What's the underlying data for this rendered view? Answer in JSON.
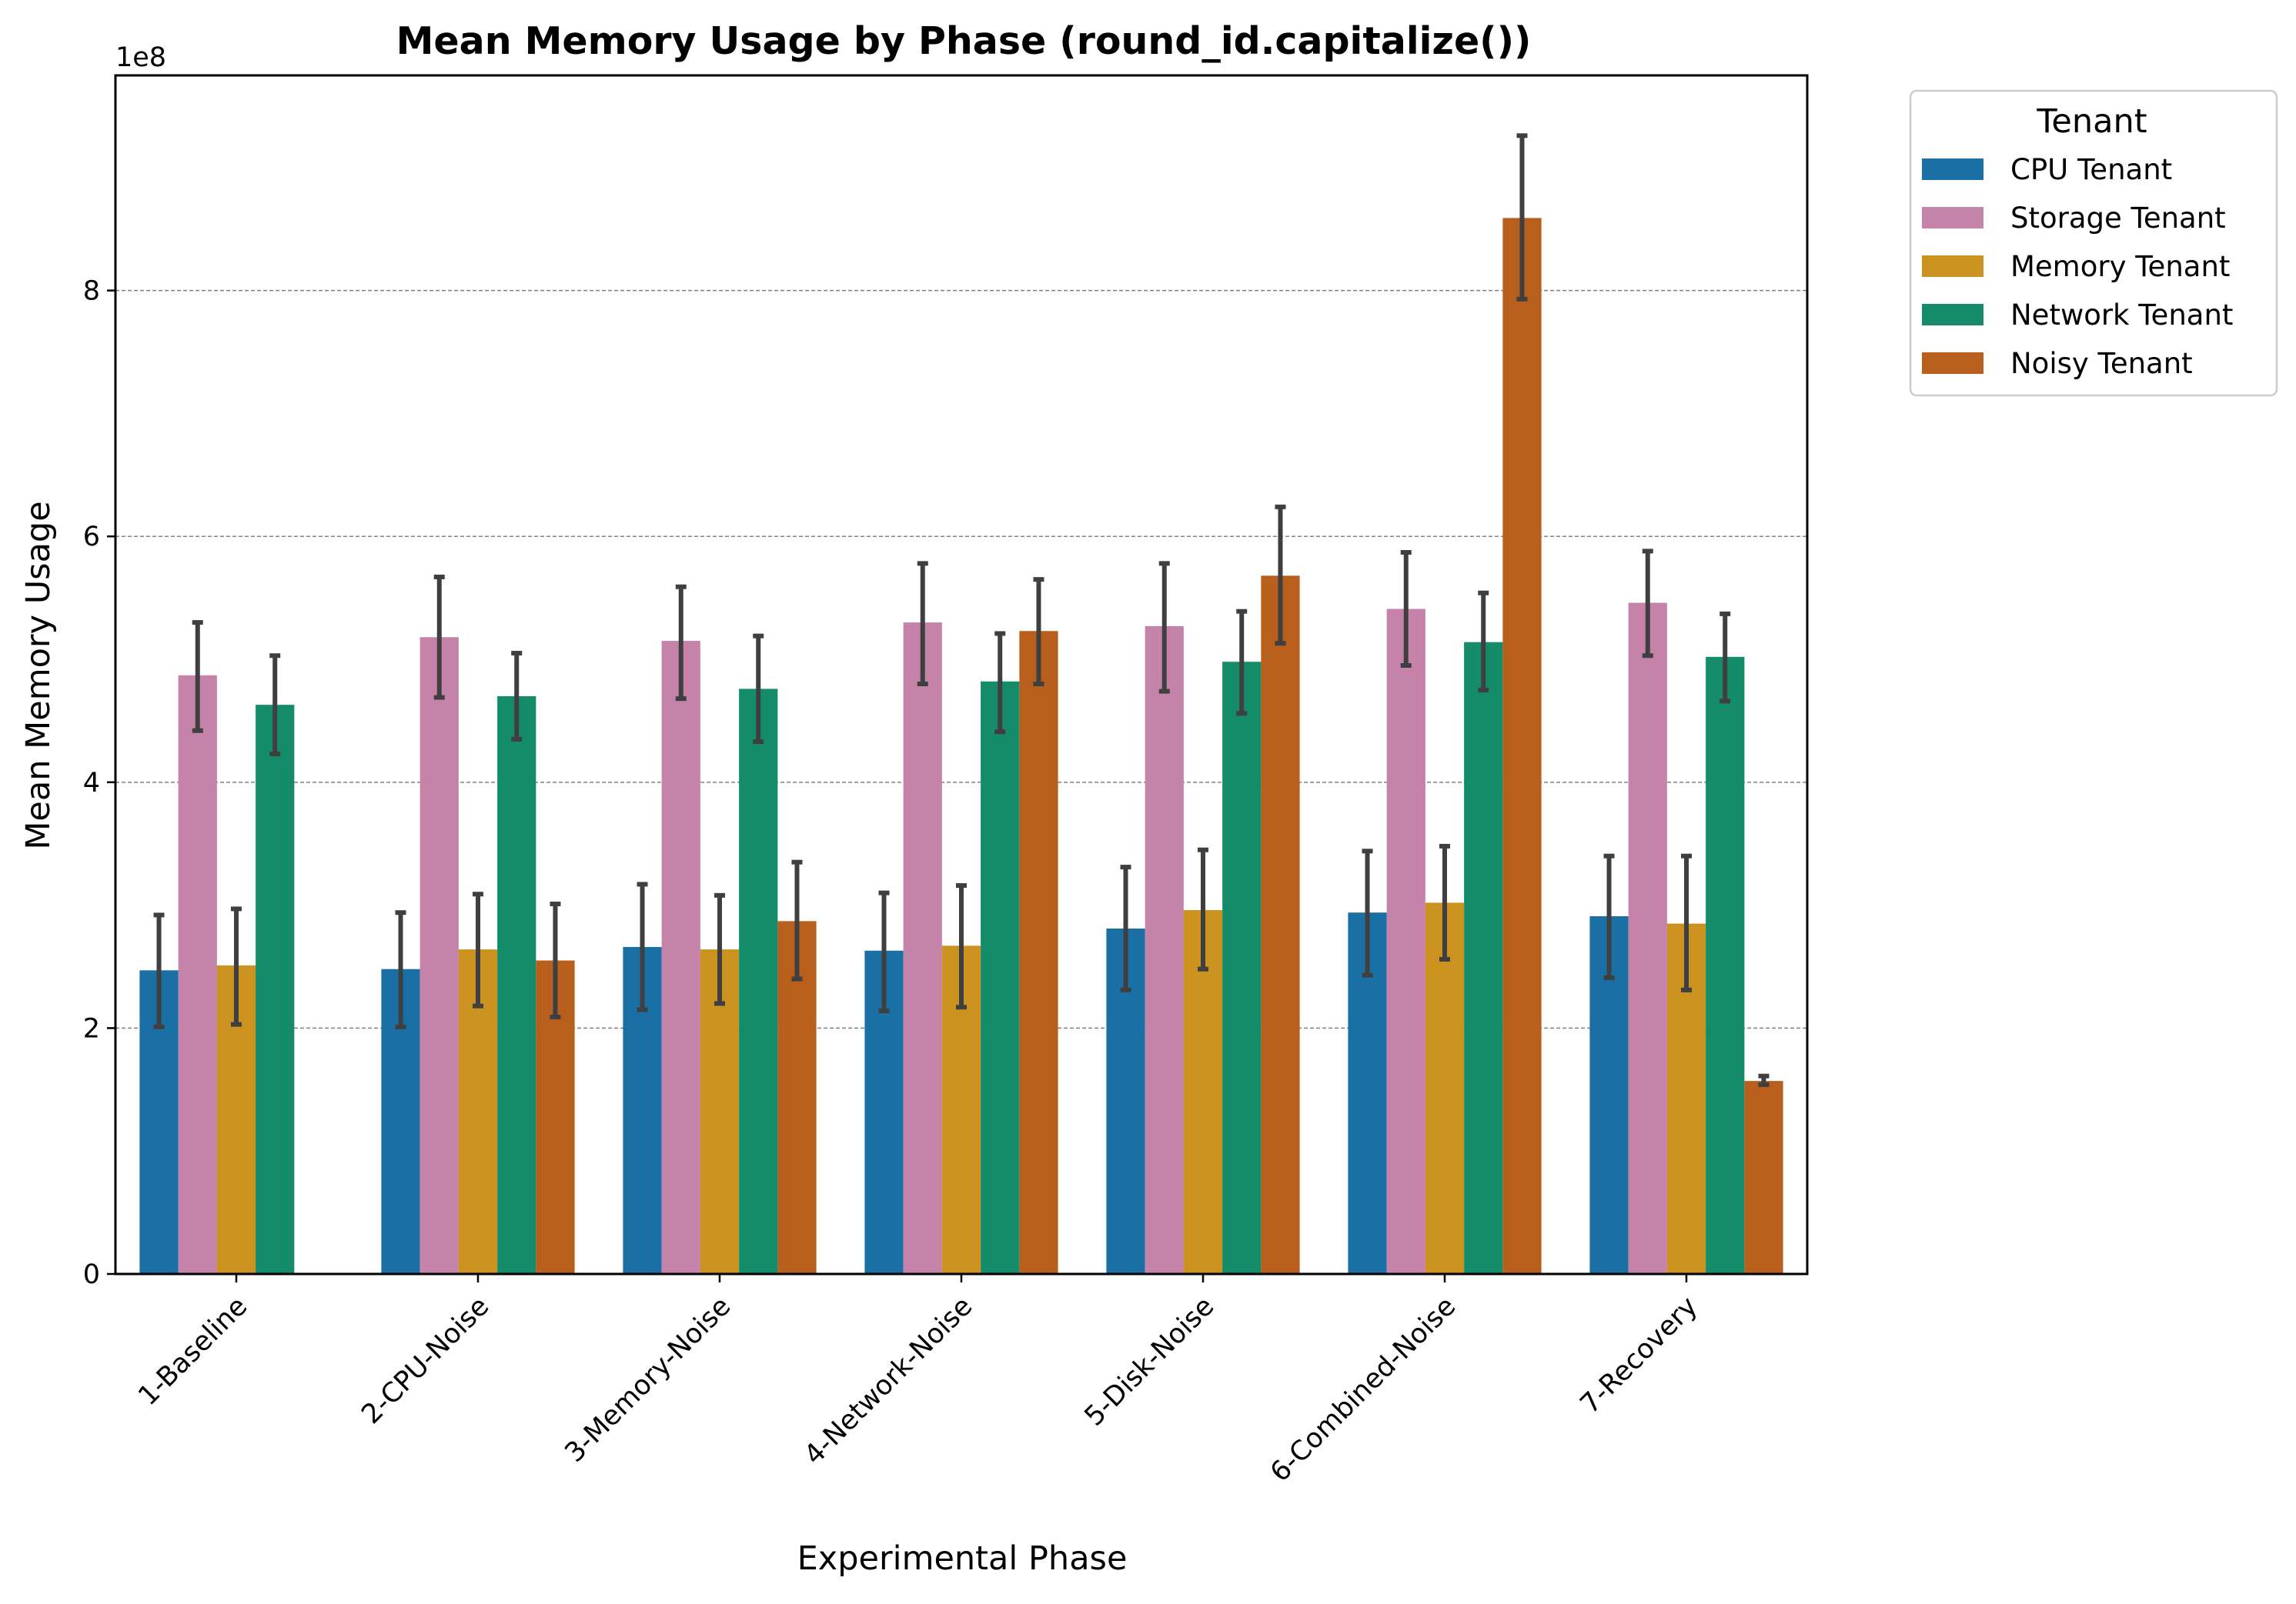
{
  "chart_data": {
    "type": "bar",
    "title": "Mean Memory Usage by Phase (round_id.capitalize())",
    "xlabel": "Experimental Phase",
    "ylabel": "Mean Memory Usage",
    "y_scale_label": "1e8",
    "y_multiplier": 100000000,
    "ylim": [
      0,
      9.75
    ],
    "yticks": [
      0,
      2,
      4,
      6,
      8
    ],
    "grid": "y-dashed",
    "legend_title": "Tenant",
    "legend_position": "outside-top-right",
    "categories": [
      "1-Baseline",
      "2-CPU-Noise",
      "3-Memory-Noise",
      "4-Network-Noise",
      "5-Disk-Noise",
      "6-Combined-Noise",
      "7-Recovery"
    ],
    "series": [
      {
        "name": "CPU Tenant",
        "color": "#1a6fa5",
        "values": [
          2.47,
          2.48,
          2.66,
          2.63,
          2.81,
          2.94,
          2.91
        ],
        "err_low": [
          2.01,
          2.01,
          2.15,
          2.14,
          2.31,
          2.43,
          2.41
        ],
        "err_high": [
          2.92,
          2.94,
          3.17,
          3.1,
          3.31,
          3.44,
          3.4
        ]
      },
      {
        "name": "Storage Tenant",
        "color": "#c583a9",
        "values": [
          4.87,
          5.18,
          5.15,
          5.3,
          5.27,
          5.41,
          5.46
        ],
        "err_low": [
          4.42,
          4.69,
          4.68,
          4.8,
          4.74,
          4.95,
          5.03
        ],
        "err_high": [
          5.3,
          5.67,
          5.59,
          5.78,
          5.78,
          5.87,
          5.88
        ]
      },
      {
        "name": "Memory Tenant",
        "color": "#cb921f",
        "values": [
          2.51,
          2.64,
          2.64,
          2.67,
          2.96,
          3.02,
          2.85
        ],
        "err_low": [
          2.03,
          2.18,
          2.2,
          2.17,
          2.48,
          2.56,
          2.31
        ],
        "err_high": [
          2.97,
          3.09,
          3.08,
          3.16,
          3.45,
          3.48,
          3.4
        ]
      },
      {
        "name": "Network Tenant",
        "color": "#148c69",
        "values": [
          4.63,
          4.7,
          4.76,
          4.82,
          4.98,
          5.14,
          5.02
        ],
        "err_low": [
          4.23,
          4.35,
          4.33,
          4.41,
          4.56,
          4.75,
          4.66
        ],
        "err_high": [
          5.03,
          5.05,
          5.19,
          5.21,
          5.39,
          5.54,
          5.37
        ]
      },
      {
        "name": "Noisy Tenant",
        "color": "#b85f1d",
        "values": [
          null,
          2.55,
          2.87,
          5.23,
          5.68,
          8.59,
          1.57
        ],
        "err_low": [
          null,
          2.09,
          2.4,
          4.8,
          5.13,
          7.93,
          1.54
        ],
        "err_high": [
          null,
          3.01,
          3.35,
          5.65,
          6.24,
          9.26,
          1.61
        ]
      }
    ]
  }
}
